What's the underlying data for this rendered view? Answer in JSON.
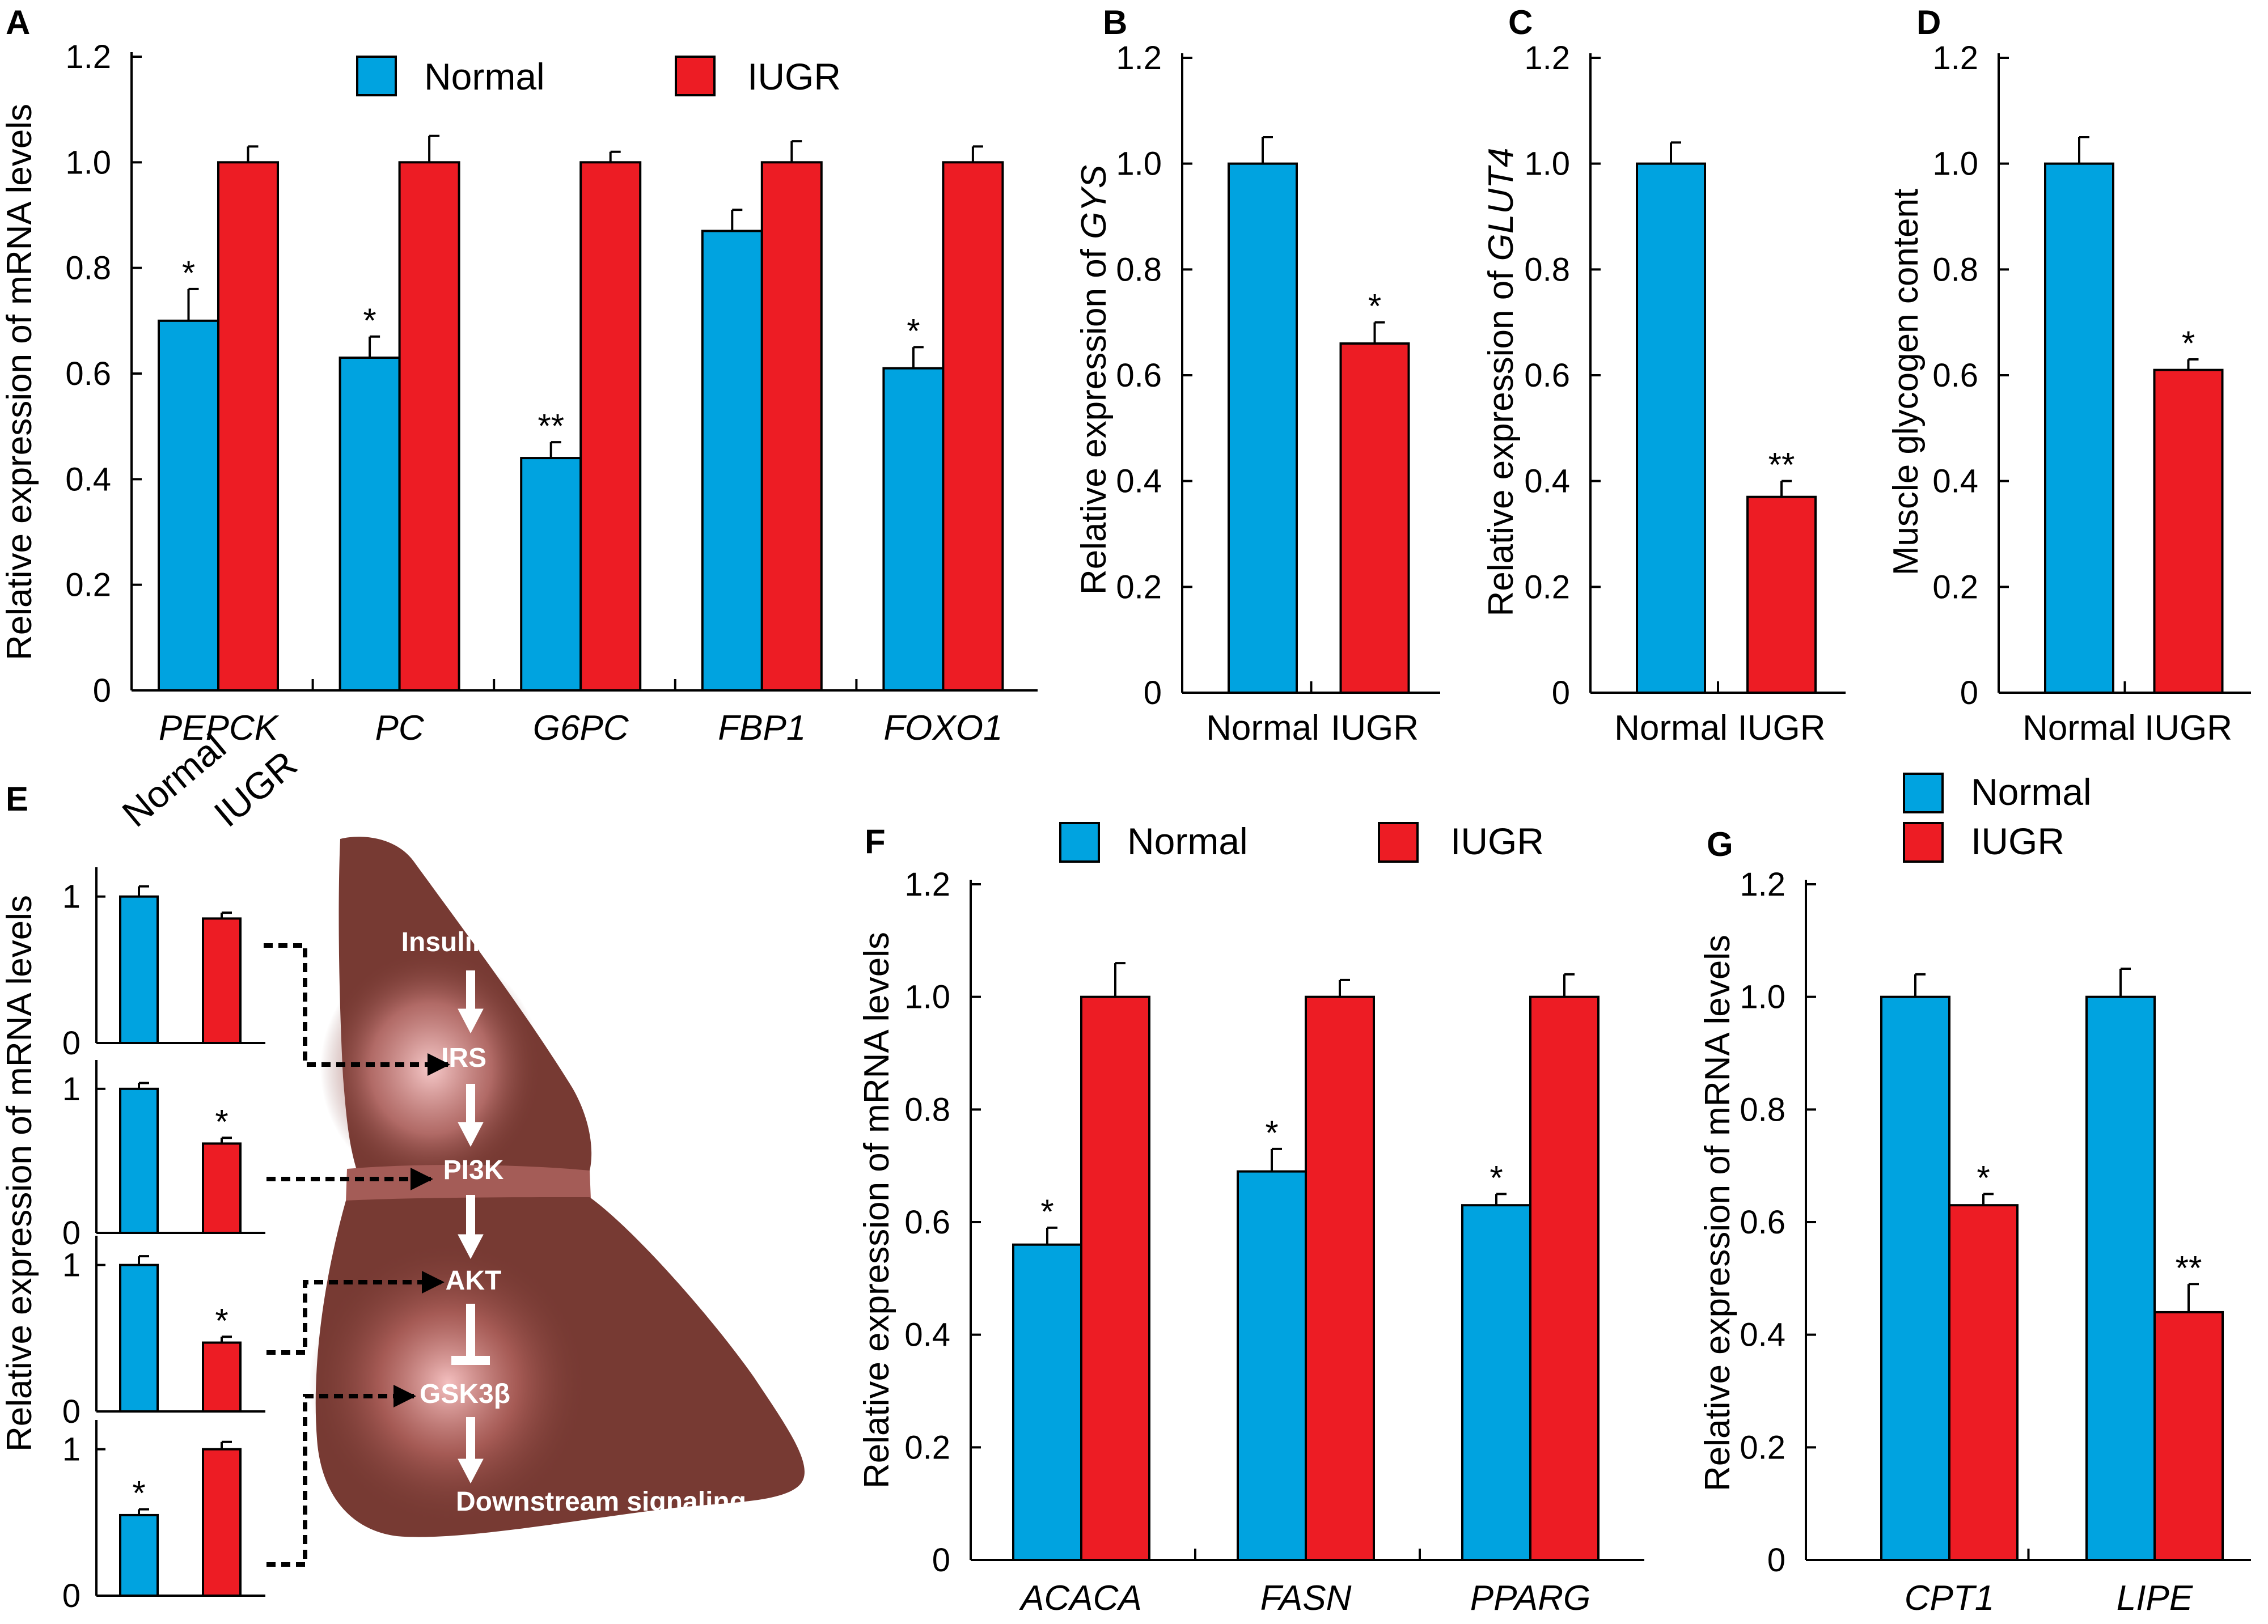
{
  "colors": {
    "normal": "#00A3E0",
    "iugr": "#ED1C24",
    "liver": "#773A33",
    "liver_glow": "#F2B3B3"
  },
  "legend": {
    "normal": "Normal",
    "iugr": "IUGR"
  },
  "panels": {
    "A": {
      "letter": "A",
      "ylabel": "Relative expression of mRNA levels"
    },
    "B": {
      "letter": "B",
      "ylabel_prefix": "Relative expression of ",
      "ylabel_gene": "GYS"
    },
    "C": {
      "letter": "C",
      "ylabel_prefix": "Relative expression of ",
      "ylabel_gene": "GLUT4"
    },
    "D": {
      "letter": "D",
      "ylabel": "Muscle glycogen content"
    },
    "E": {
      "letter": "E",
      "ylabel": "Relative expression of mRNA levels"
    },
    "F": {
      "letter": "F",
      "ylabel": "Relative expression of mRNA levels"
    },
    "G": {
      "letter": "G",
      "ylabel": "Relative expression of mRNA levels"
    }
  },
  "pathway": [
    "Insulin",
    "IRS",
    "PI3K",
    "AKT",
    "GSK3β",
    "Downstream signaling"
  ],
  "chart_data": [
    {
      "id": "A",
      "type": "bar",
      "ylim": [
        0,
        1.2
      ],
      "yticks": [
        "0",
        "0.2",
        "0.4",
        "0.6",
        "0.8",
        "1.0",
        "1.2"
      ],
      "categories": [
        "PEPCK",
        "PC",
        "G6PC",
        "FBP1",
        "FOXO1"
      ],
      "series": [
        {
          "name": "Normal",
          "values": [
            0.7,
            0.63,
            0.44,
            0.87,
            0.61
          ],
          "errors": [
            0.06,
            0.04,
            0.03,
            0.04,
            0.04
          ],
          "sig": [
            "*",
            "*",
            "**",
            "",
            "*"
          ]
        },
        {
          "name": "IUGR",
          "values": [
            1.0,
            1.0,
            1.0,
            1.0,
            1.0
          ],
          "errors": [
            0.03,
            0.05,
            0.02,
            0.04,
            0.03
          ],
          "sig": [
            "",
            "",
            "",
            "",
            ""
          ]
        }
      ]
    },
    {
      "id": "B",
      "type": "bar",
      "ylim": [
        0,
        1.2
      ],
      "yticks": [
        "0",
        "0.2",
        "0.4",
        "0.6",
        "0.8",
        "1.0",
        "1.2"
      ],
      "categories": [
        "Normal",
        "IUGR"
      ],
      "values": [
        1.0,
        0.66
      ],
      "errors": [
        0.05,
        0.04
      ],
      "sig": [
        "",
        "*"
      ]
    },
    {
      "id": "C",
      "type": "bar",
      "ylim": [
        0,
        1.2
      ],
      "yticks": [
        "0",
        "0.2",
        "0.4",
        "0.6",
        "0.8",
        "1.0",
        "1.2"
      ],
      "categories": [
        "Normal",
        "IUGR"
      ],
      "values": [
        1.0,
        0.37
      ],
      "errors": [
        0.04,
        0.03
      ],
      "sig": [
        "",
        "**"
      ]
    },
    {
      "id": "D",
      "type": "bar",
      "ylim": [
        0,
        1.2
      ],
      "yticks": [
        "0",
        "0.2",
        "0.4",
        "0.6",
        "0.8",
        "1.0",
        "1.2"
      ],
      "categories": [
        "Normal",
        "IUGR"
      ],
      "values": [
        1.0,
        0.61
      ],
      "errors": [
        0.05,
        0.02
      ],
      "sig": [
        "",
        "*"
      ]
    },
    {
      "id": "E",
      "type": "bar",
      "column_labels": [
        "Normal",
        "IUGR"
      ],
      "yticks": [
        "0",
        "1"
      ],
      "targets": [
        "IRS",
        "PI3K",
        "AKT",
        "GSK3β"
      ],
      "rows": [
        {
          "values": [
            1.0,
            0.85
          ],
          "errors": [
            0.07,
            0.04
          ],
          "sig": [
            "",
            ""
          ]
        },
        {
          "values": [
            1.0,
            0.62
          ],
          "errors": [
            0.04,
            0.04
          ],
          "sig": [
            "",
            "*"
          ]
        },
        {
          "values": [
            1.0,
            0.47
          ],
          "errors": [
            0.06,
            0.04
          ],
          "sig": [
            "",
            "*"
          ]
        },
        {
          "values": [
            0.55,
            1.0
          ],
          "errors": [
            0.04,
            0.05
          ],
          "sig": [
            "*",
            ""
          ]
        }
      ]
    },
    {
      "id": "F",
      "type": "bar",
      "ylim": [
        0,
        1.2
      ],
      "yticks": [
        "0",
        "0.2",
        "0.4",
        "0.6",
        "0.8",
        "1.0",
        "1.2"
      ],
      "categories": [
        "ACACA",
        "FASN",
        "PPARG"
      ],
      "series": [
        {
          "name": "Normal",
          "values": [
            0.56,
            0.69,
            0.63
          ],
          "errors": [
            0.03,
            0.04,
            0.02
          ],
          "sig": [
            "*",
            "*",
            "*"
          ]
        },
        {
          "name": "IUGR",
          "values": [
            1.0,
            1.0,
            1.0
          ],
          "errors": [
            0.06,
            0.03,
            0.04
          ],
          "sig": [
            "",
            "",
            ""
          ]
        }
      ]
    },
    {
      "id": "G",
      "type": "bar",
      "ylim": [
        0,
        1.2
      ],
      "yticks": [
        "0",
        "0.2",
        "0.4",
        "0.6",
        "0.8",
        "1.0",
        "1.2"
      ],
      "categories": [
        "CPT1",
        "LIPE"
      ],
      "series": [
        {
          "name": "Normal",
          "values": [
            1.0,
            1.0
          ],
          "errors": [
            0.04,
            0.05
          ],
          "sig": [
            "",
            ""
          ]
        },
        {
          "name": "IUGR",
          "values": [
            0.63,
            0.44
          ],
          "errors": [
            0.02,
            0.05
          ],
          "sig": [
            "*",
            "**"
          ]
        }
      ]
    }
  ]
}
